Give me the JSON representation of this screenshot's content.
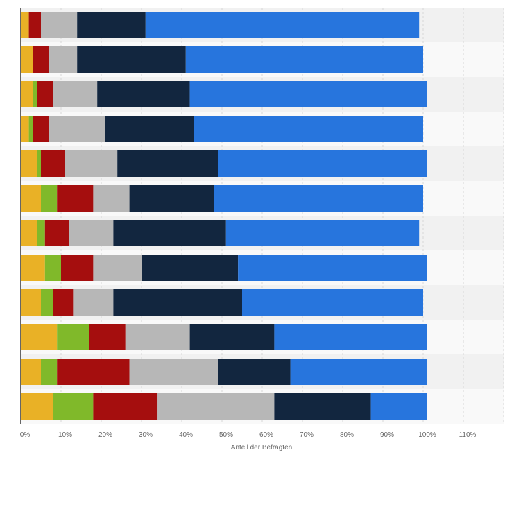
{
  "chart_data": {
    "type": "bar",
    "orientation": "horizontal",
    "stacked": true,
    "xlabel": "Anteil der Befragten",
    "xlim": [
      0,
      120
    ],
    "x_ticks": [
      "0%",
      "10%",
      "20%",
      "30%",
      "40%",
      "50%",
      "60%",
      "70%",
      "80%",
      "90%",
      "100%",
      "110%"
    ],
    "grid": true,
    "legend": "none",
    "rows": 12,
    "series": [
      {
        "color": "#e9b126",
        "values": [
          2,
          3,
          3,
          2,
          4,
          5,
          4,
          6,
          5,
          9,
          5,
          8
        ]
      },
      {
        "color": "#80b92a",
        "values": [
          0,
          0,
          1,
          1,
          1,
          4,
          2,
          4,
          3,
          8,
          4,
          10
        ]
      },
      {
        "color": "#a50e0e",
        "values": [
          3,
          4,
          4,
          4,
          6,
          9,
          6,
          8,
          5,
          9,
          18,
          16
        ]
      },
      {
        "color": "#b7b7b7",
        "values": [
          9,
          7,
          11,
          14,
          13,
          9,
          11,
          12,
          10,
          16,
          22,
          29
        ]
      },
      {
        "color": "#12263f",
        "values": [
          17,
          27,
          23,
          22,
          25,
          21,
          28,
          24,
          32,
          21,
          18,
          24
        ]
      },
      {
        "color": "#2775dd",
        "values": [
          68,
          59,
          59,
          57,
          52,
          52,
          48,
          47,
          45,
          38,
          34,
          14
        ]
      }
    ]
  }
}
